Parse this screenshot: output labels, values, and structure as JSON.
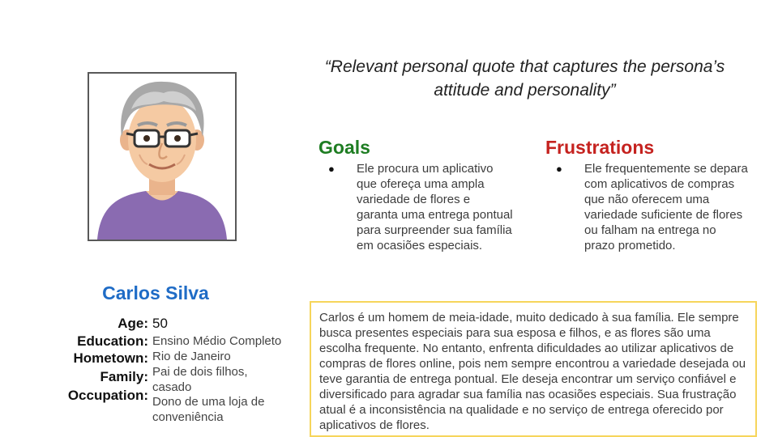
{
  "quote": "“Relevant personal quote that captures the persona’s attitude and personality”",
  "goals": {
    "heading": "Goals",
    "items": [
      "Ele procura um aplicativo que ofereça uma ampla variedade de flores e garanta uma entrega pontual para surpreender sua família em ocasiões especiais."
    ]
  },
  "frustrations": {
    "heading": "Frustrations",
    "items": [
      "Ele frequentemente se depara com aplicativos de compras que não oferecem uma variedade suficiente de flores ou falham na entrega no prazo prometido."
    ]
  },
  "bullet_symbol": "●",
  "persona": {
    "name": "Carlos Silva",
    "age_label": "Age:",
    "age": "50",
    "education_label": "Education:",
    "education": "Ensino Médio Completo",
    "hometown_label": "Hometown:",
    "hometown": "Rio de Janeiro",
    "family_label": "Family:",
    "family": "Pai de dois filhos, casado",
    "occupation_label": "Occupation:",
    "occupation": "Dono de uma loja de conveniência"
  },
  "bio": "Carlos é um homem de meia-idade, muito dedicado à sua família. Ele sempre busca presentes especiais para sua esposa e filhos, e as flores são uma escolha frequente. No entanto, enfrenta dificuldades ao utilizar aplicativos de compras de flores online, pois nem sempre encontrou a variedade desejada ou teve garantia de entrega pontual. Ele deseja encontrar um serviço confiável e diversificado para agradar sua família nas ocasiões especiais. Sua frustração atual é a inconsistência na qualidade e no serviço de entrega oferecido por aplicativos de flores.",
  "colors": {
    "goals": "#1e7d22",
    "frustrations": "#c5221f",
    "name": "#1f6cc6",
    "bio_border": "#f6d55b"
  },
  "icons": {
    "photo": "elderly-man-avatar-icon"
  }
}
